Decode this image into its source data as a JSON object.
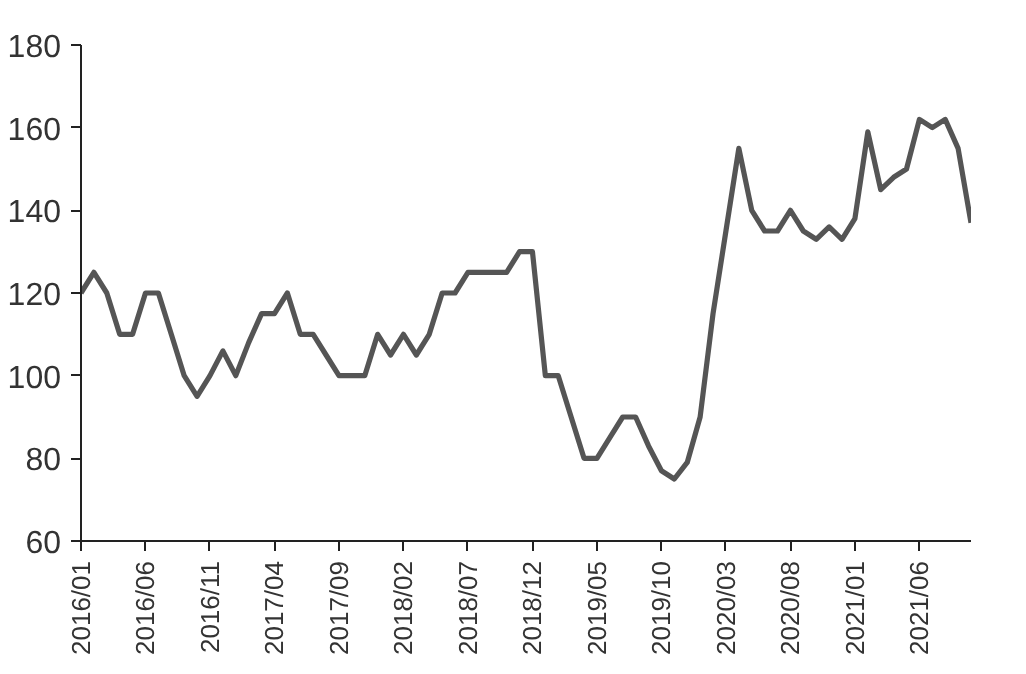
{
  "chart_data": {
    "type": "line",
    "categories": [
      "2016/01",
      null,
      null,
      null,
      null,
      "2016/06",
      null,
      null,
      null,
      null,
      "2016/11",
      null,
      null,
      null,
      null,
      "2017/04",
      null,
      null,
      null,
      null,
      "2017/09",
      null,
      null,
      null,
      null,
      "2018/02",
      null,
      null,
      null,
      null,
      "2018/07",
      null,
      null,
      null,
      null,
      "2018/12",
      null,
      null,
      null,
      null,
      "2019/05",
      null,
      null,
      null,
      null,
      "2019/10",
      null,
      null,
      null,
      null,
      "2020/03",
      null,
      null,
      null,
      null,
      "2020/08",
      null,
      null,
      null,
      null,
      "2021/01",
      null,
      null,
      null,
      null,
      "2021/06",
      null,
      null,
      null,
      null
    ],
    "series": [
      {
        "color": "#555555",
        "values": [
          120,
          125,
          120,
          110,
          110,
          120,
          120,
          110,
          100,
          95,
          100,
          106,
          100,
          108,
          115,
          115,
          120,
          110,
          110,
          105,
          100,
          100,
          100,
          110,
          105,
          110,
          105,
          110,
          120,
          120,
          125,
          125,
          125,
          125,
          130,
          130,
          100,
          100,
          90,
          80,
          80,
          85,
          90,
          90,
          83,
          77,
          75,
          79,
          90,
          115,
          135,
          155,
          140,
          135,
          135,
          140,
          135,
          133,
          136,
          133,
          138,
          159,
          145,
          148,
          150,
          162,
          160,
          162,
          155,
          137
        ]
      }
    ],
    "ylim": [
      60,
      180
    ],
    "yticks": [
      60,
      80,
      100,
      120,
      140,
      160,
      180
    ],
    "grid": false,
    "marker": "none",
    "line_style": "solid"
  }
}
